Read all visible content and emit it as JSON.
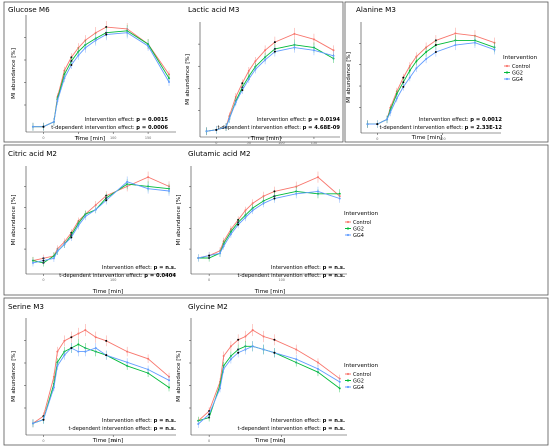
{
  "figure": {
    "ylabel": "MI abundance [%]",
    "xlabel": "Time [min]",
    "legend_title": "Intervention",
    "legend_items": [
      "Control",
      "GG2",
      "GG4"
    ],
    "colors": {
      "Control": "#f8766d",
      "GG2": "#00ba38",
      "GG4": "#619cff",
      "black": "#000000",
      "frame": "#555555"
    },
    "effect_prefix": "Intervention effect: ",
    "time_effect_prefix": "t-dependent intervention effect: "
  },
  "chart_data": [
    {
      "type": "line",
      "title": "Glucose M6",
      "p_intervention": "p = 0.0015",
      "p_time": "p = 0.0006",
      "x": [
        -15,
        0,
        15,
        20,
        30,
        40,
        50,
        60,
        75,
        90,
        120,
        150,
        180
      ],
      "xticks": [
        0,
        50,
        100,
        150
      ],
      "series": [
        {
          "name": "Control",
          "values": [
            0.2,
            0.2,
            1.5,
            8.0,
            15.0,
            18.5,
            21.0,
            23.0,
            25.0,
            26.5,
            26.0,
            22.0,
            14.0
          ]
        },
        {
          "name": "GG2",
          "values": [
            0.2,
            0.2,
            1.5,
            7.5,
            14.0,
            17.5,
            20.0,
            21.8,
            23.5,
            25.0,
            25.5,
            22.0,
            13.0
          ]
        },
        {
          "name": "GG4",
          "values": [
            0.2,
            0.2,
            1.5,
            7.0,
            13.0,
            16.5,
            19.0,
            21.0,
            23.0,
            24.5,
            25.0,
            21.5,
            12.0
          ]
        }
      ]
    },
    {
      "type": "line",
      "title": "Lactic acid M3",
      "p_intervention": "p = 0.0194",
      "p_time": "p = 4.68E-09",
      "x": [
        -15,
        0,
        15,
        20,
        30,
        40,
        50,
        60,
        75,
        90,
        120,
        150,
        180
      ],
      "xticks": [
        0,
        50,
        100,
        150
      ],
      "series": [
        {
          "name": "Control",
          "values": [
            0.1,
            0.2,
            0.4,
            1.2,
            2.6,
            3.6,
            4.5,
            5.2,
            6.0,
            6.6,
            7.2,
            6.8,
            6.0
          ]
        },
        {
          "name": "GG2",
          "values": [
            0.1,
            0.2,
            0.4,
            1.0,
            2.3,
            3.3,
            4.1,
            4.8,
            5.5,
            6.1,
            6.4,
            6.2,
            5.4
          ]
        },
        {
          "name": "GG4",
          "values": [
            0.1,
            0.2,
            0.4,
            1.0,
            2.2,
            3.1,
            3.9,
            4.6,
            5.3,
            5.9,
            6.2,
            6.0,
            5.6
          ]
        }
      ]
    },
    {
      "type": "line",
      "title": "Alanine M3",
      "p_intervention": "p = 0.0012",
      "p_time": "p = 2.33E-12",
      "x": [
        -15,
        0,
        15,
        20,
        30,
        40,
        50,
        60,
        75,
        90,
        120,
        150,
        180
      ],
      "xticks": [
        0,
        100
      ],
      "series": [
        {
          "name": "Control",
          "values": [
            0.2,
            0.2,
            0.4,
            0.9,
            1.6,
            2.2,
            2.7,
            3.1,
            3.5,
            3.8,
            4.1,
            4.0,
            3.7
          ]
        },
        {
          "name": "GG2",
          "values": [
            0.2,
            0.2,
            0.4,
            0.8,
            1.5,
            2.0,
            2.5,
            2.9,
            3.3,
            3.6,
            3.8,
            3.8,
            3.5
          ]
        },
        {
          "name": "GG4",
          "values": [
            0.2,
            0.2,
            0.4,
            0.7,
            1.3,
            1.8,
            2.2,
            2.6,
            3.0,
            3.3,
            3.6,
            3.7,
            3.4
          ]
        }
      ]
    },
    {
      "type": "line",
      "title": "Citric acid M2",
      "p_intervention": "p = n.s.",
      "p_time": "p = 0.0404",
      "x": [
        -15,
        0,
        15,
        20,
        30,
        40,
        50,
        60,
        75,
        90,
        120,
        150,
        180
      ],
      "xticks": [
        0,
        100,
        200
      ],
      "series": [
        {
          "name": "Control",
          "values": [
            0.4,
            0.5,
            0.6,
            0.9,
            1.2,
            1.6,
            2.1,
            2.4,
            2.8,
            3.2,
            3.6,
            4.0,
            3.6
          ]
        },
        {
          "name": "GG2",
          "values": [
            0.4,
            0.3,
            0.6,
            0.8,
            1.1,
            1.5,
            2.0,
            2.4,
            2.6,
            3.1,
            3.7,
            3.6,
            3.5
          ]
        },
        {
          "name": "GG4",
          "values": [
            0.3,
            0.4,
            0.5,
            0.8,
            1.1,
            1.4,
            1.9,
            2.3,
            2.6,
            3.0,
            3.8,
            3.5,
            3.4
          ]
        }
      ]
    },
    {
      "type": "line",
      "title": "Glutamic acid M2",
      "p_intervention": "p = n.s.",
      "p_time": "p = n.s.",
      "x": [
        -15,
        0,
        15,
        20,
        30,
        40,
        50,
        60,
        75,
        90,
        120,
        150,
        180
      ],
      "xticks": [
        0,
        100,
        200
      ],
      "series": [
        {
          "name": "Control",
          "values": [
            0.5,
            0.6,
            0.8,
            1.2,
            1.7,
            2.1,
            2.5,
            2.8,
            3.1,
            3.3,
            3.5,
            3.9,
            3.1
          ]
        },
        {
          "name": "GG2",
          "values": [
            0.5,
            0.5,
            0.7,
            1.1,
            1.6,
            2.0,
            2.3,
            2.6,
            2.9,
            3.1,
            3.3,
            3.2,
            3.2
          ]
        },
        {
          "name": "GG4",
          "values": [
            0.5,
            0.6,
            0.7,
            1.0,
            1.5,
            1.9,
            2.2,
            2.5,
            2.8,
            3.0,
            3.2,
            3.3,
            3.0
          ]
        }
      ]
    },
    {
      "type": "line",
      "title": "Serine M3",
      "p_intervention": "p = n.s.",
      "p_time": "p = n.s.",
      "x": [
        -15,
        0,
        15,
        20,
        30,
        40,
        50,
        60,
        75,
        90,
        120,
        150,
        180
      ],
      "xticks": [
        0,
        100,
        200
      ],
      "series": [
        {
          "name": "Control",
          "values": [
            0.2,
            0.4,
            1.5,
            2.2,
            2.5,
            2.6,
            2.7,
            2.8,
            2.6,
            2.5,
            2.2,
            2.0,
            1.5
          ]
        },
        {
          "name": "GG2",
          "values": [
            0.2,
            0.3,
            1.3,
            1.9,
            2.2,
            2.3,
            2.4,
            2.3,
            2.2,
            2.1,
            1.8,
            1.6,
            1.2
          ]
        },
        {
          "name": "GG4",
          "values": [
            0.2,
            0.3,
            1.2,
            1.8,
            2.1,
            2.3,
            2.2,
            2.2,
            2.3,
            2.1,
            1.9,
            1.7,
            1.4
          ]
        }
      ]
    },
    {
      "type": "line",
      "title": "Glycine M2",
      "p_intervention": "p = n.s.",
      "p_time": "p = n.s.",
      "x": [
        -15,
        0,
        15,
        20,
        30,
        40,
        50,
        60,
        75,
        90,
        120,
        150,
        180
      ],
      "xticks": [
        0,
        100,
        200
      ],
      "series": [
        {
          "name": "Control",
          "values": [
            0.3,
            0.6,
            1.5,
            2.3,
            2.6,
            2.8,
            2.9,
            3.1,
            2.9,
            2.8,
            2.5,
            2.1,
            1.6
          ]
        },
        {
          "name": "GG2",
          "values": [
            0.3,
            0.4,
            1.4,
            2.0,
            2.3,
            2.5,
            2.6,
            2.6,
            2.5,
            2.4,
            2.1,
            1.8,
            1.3
          ]
        },
        {
          "name": "GG4",
          "values": [
            0.2,
            0.5,
            1.3,
            1.9,
            2.2,
            2.4,
            2.5,
            2.6,
            2.5,
            2.4,
            2.2,
            1.9,
            1.5
          ]
        }
      ]
    }
  ]
}
